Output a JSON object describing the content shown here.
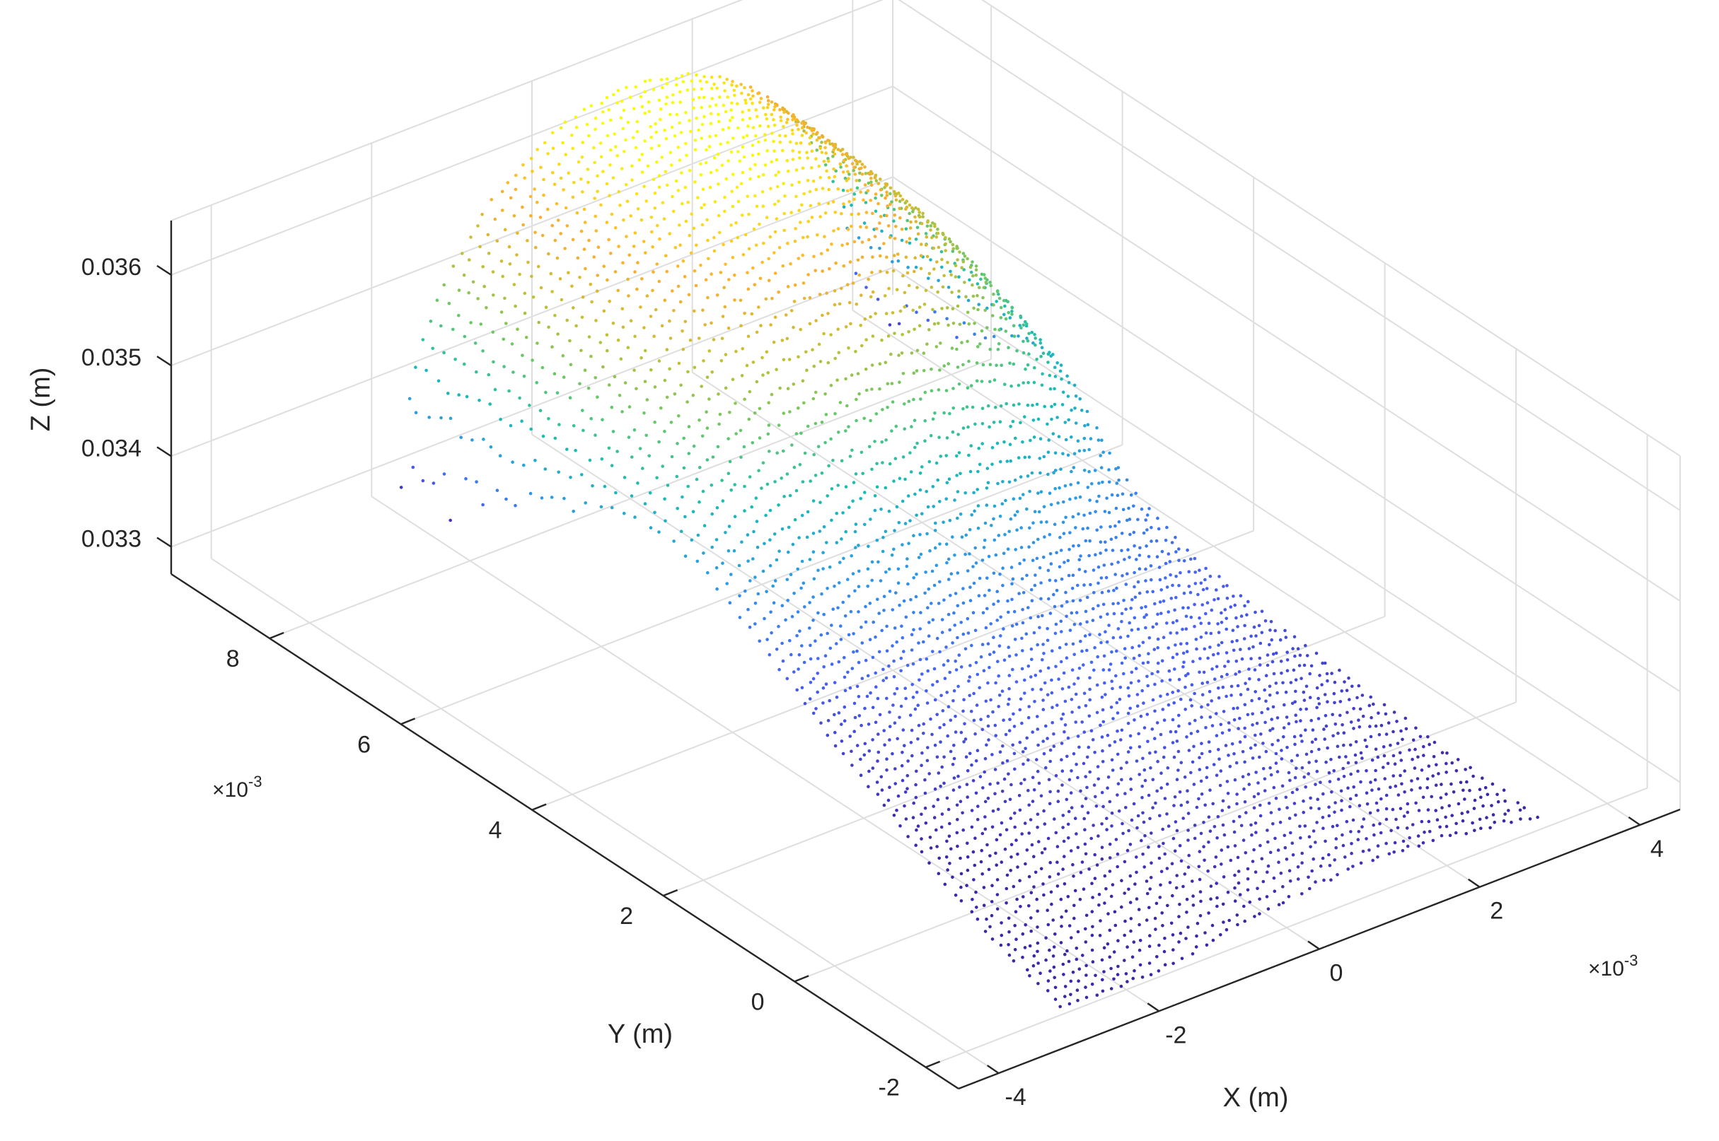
{
  "chart_data": {
    "type": "scatter",
    "subtype": "3d-point-cloud",
    "title": "",
    "xlabel": "X (m)",
    "ylabel": "Y (m)",
    "zlabel": "Z (m)",
    "x_ticks": [
      "-4",
      "-2",
      "0",
      "2",
      "4"
    ],
    "y_ticks": [
      "-2",
      "0",
      "2",
      "4",
      "6",
      "8"
    ],
    "z_ticks": [
      "0.033",
      "0.034",
      "0.035",
      "0.036"
    ],
    "x_exponent": {
      "base": "×10",
      "power": "-3"
    },
    "y_exponent": {
      "base": "×10",
      "power": "-3"
    },
    "xlim": [
      -0.0045,
      0.0045
    ],
    "ylim": [
      -0.0025,
      0.0095
    ],
    "zlim": [
      0.0327,
      0.0366
    ],
    "grid": true,
    "legend": "none",
    "colormap": "parula",
    "colormap_stops": [
      "#3e26a8",
      "#4760f5",
      "#2d9ae6",
      "#17bcb8",
      "#61c86e",
      "#c2c133",
      "#fcae2e",
      "#f9fb0e"
    ],
    "surface": "raised arched ridge over y > 0.0045 sloping down into a flatter region toward low y, with a sharp ridge near x = 0.001",
    "point_color": "by height (z)"
  }
}
